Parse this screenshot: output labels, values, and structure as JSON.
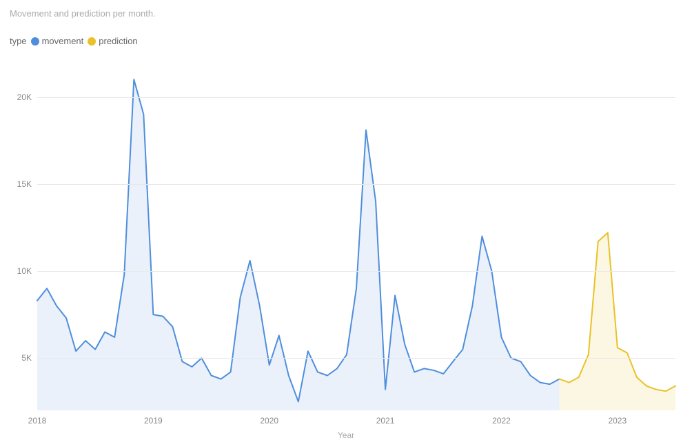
{
  "title": "Movement and prediction per month.",
  "legend_label": "type",
  "legend": [
    {
      "name": "movement",
      "color": "#4f8edc"
    },
    {
      "name": "prediction",
      "color": "#e9c227"
    }
  ],
  "x_axis_label": "Year",
  "chart": {
    "type": "line-area",
    "background_color": "#ffffff",
    "grid_color": "#e8e8e8",
    "text_color": "#888888",
    "line_width": 2,
    "y": {
      "min": 2000,
      "max": 22000,
      "ticks": [
        5000,
        10000,
        15000,
        20000
      ],
      "tick_labels": [
        "5K",
        "10K",
        "15K",
        "20K"
      ]
    },
    "x": {
      "min": 0,
      "max": 66,
      "ticks": [
        0,
        12,
        24,
        36,
        48,
        60
      ],
      "tick_labels": [
        "2018",
        "2019",
        "2020",
        "2021",
        "2022",
        "2023"
      ]
    },
    "series": [
      {
        "name": "movement",
        "stroke": "#4f8edc",
        "fill": "#e8eff9",
        "fill_opacity": 0.85,
        "points": [
          [
            0,
            8300
          ],
          [
            1,
            9000
          ],
          [
            2,
            8000
          ],
          [
            3,
            7300
          ],
          [
            4,
            5400
          ],
          [
            5,
            6000
          ],
          [
            6,
            5500
          ],
          [
            7,
            6500
          ],
          [
            8,
            6200
          ],
          [
            9,
            9800
          ],
          [
            10,
            21000
          ],
          [
            11,
            19000
          ],
          [
            12,
            7500
          ],
          [
            13,
            7400
          ],
          [
            14,
            6800
          ],
          [
            15,
            4800
          ],
          [
            16,
            4500
          ],
          [
            17,
            5000
          ],
          [
            18,
            4000
          ],
          [
            19,
            3800
          ],
          [
            20,
            4200
          ],
          [
            21,
            8500
          ],
          [
            22,
            10600
          ],
          [
            23,
            8000
          ],
          [
            24,
            4600
          ],
          [
            25,
            6300
          ],
          [
            26,
            4000
          ],
          [
            27,
            2500
          ],
          [
            28,
            5400
          ],
          [
            29,
            4200
          ],
          [
            30,
            4000
          ],
          [
            31,
            4400
          ],
          [
            32,
            5200
          ],
          [
            33,
            9000
          ],
          [
            34,
            18100
          ],
          [
            35,
            14000
          ],
          [
            36,
            3200
          ],
          [
            37,
            8600
          ],
          [
            38,
            5800
          ],
          [
            39,
            4200
          ],
          [
            40,
            4400
          ],
          [
            41,
            4300
          ],
          [
            42,
            4100
          ],
          [
            43,
            4800
          ],
          [
            44,
            5500
          ],
          [
            45,
            8000
          ],
          [
            46,
            12000
          ],
          [
            47,
            10000
          ],
          [
            48,
            6200
          ],
          [
            49,
            5000
          ],
          [
            50,
            4800
          ],
          [
            51,
            4000
          ],
          [
            52,
            3600
          ],
          [
            53,
            3500
          ],
          [
            54,
            3800
          ]
        ]
      },
      {
        "name": "prediction",
        "stroke": "#e9c227",
        "fill": "#fcf6dd",
        "fill_opacity": 0.85,
        "points": [
          [
            54,
            3800
          ],
          [
            55,
            3600
          ],
          [
            56,
            3900
          ],
          [
            57,
            5200
          ],
          [
            58,
            11700
          ],
          [
            59,
            12200
          ],
          [
            60,
            5600
          ],
          [
            61,
            5300
          ],
          [
            62,
            3900
          ],
          [
            63,
            3400
          ],
          [
            64,
            3200
          ],
          [
            65,
            3100
          ],
          [
            66,
            3400
          ]
        ]
      }
    ]
  }
}
